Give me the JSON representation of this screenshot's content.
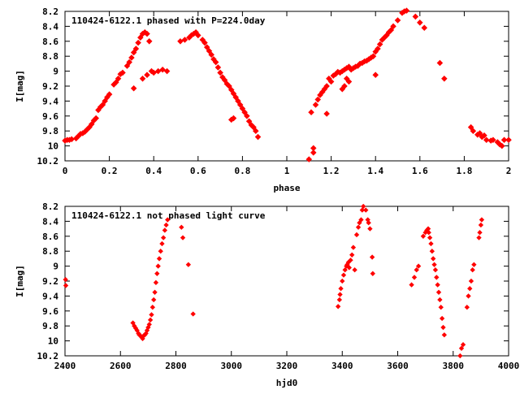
{
  "colors": {
    "points": "#ff0000",
    "axis": "#000000",
    "background": "#ffffff"
  },
  "chart_data": [
    {
      "type": "scatter",
      "title": "110424-6122.1 phased with P=224.0day",
      "xlabel": "phase",
      "ylabel": "I[mag]",
      "xlim": [
        0,
        2
      ],
      "ylim": [
        10.2,
        8.2
      ],
      "y_inverted": true,
      "grid": false,
      "legend": "none",
      "x_ticks": [
        "0",
        "0.2",
        "0.4",
        "0.6",
        "0.8",
        "1",
        "1.2",
        "1.4",
        "1.6",
        "1.8",
        "2"
      ],
      "y_ticks": [
        "8.2",
        "8.4",
        "8.6",
        "8.8",
        "9",
        "9.2",
        "9.4",
        "9.6",
        "9.8",
        "10",
        "10.2"
      ],
      "points": [
        [
          0.0,
          9.93
        ],
        [
          0.01,
          9.92
        ],
        [
          0.02,
          9.92
        ],
        [
          0.03,
          9.91
        ],
        [
          0.05,
          9.9
        ],
        [
          0.06,
          9.87
        ],
        [
          0.07,
          9.84
        ],
        [
          0.08,
          9.83
        ],
        [
          0.09,
          9.81
        ],
        [
          0.1,
          9.78
        ],
        [
          0.11,
          9.75
        ],
        [
          0.12,
          9.71
        ],
        [
          0.13,
          9.66
        ],
        [
          0.14,
          9.63
        ],
        [
          0.15,
          9.52
        ],
        [
          0.16,
          9.48
        ],
        [
          0.17,
          9.45
        ],
        [
          0.18,
          9.4
        ],
        [
          0.19,
          9.35
        ],
        [
          0.2,
          9.31
        ],
        [
          0.22,
          9.18
        ],
        [
          0.23,
          9.15
        ],
        [
          0.24,
          9.1
        ],
        [
          0.25,
          9.04
        ],
        [
          0.26,
          9.02
        ],
        [
          0.28,
          8.93
        ],
        [
          0.29,
          8.88
        ],
        [
          0.3,
          8.82
        ],
        [
          0.31,
          8.75
        ],
        [
          0.32,
          8.7
        ],
        [
          0.33,
          8.62
        ],
        [
          0.34,
          8.55
        ],
        [
          0.35,
          8.5
        ],
        [
          0.36,
          8.48
        ],
        [
          0.37,
          8.5
        ],
        [
          0.38,
          8.6
        ],
        [
          0.39,
          9.0
        ],
        [
          0.4,
          9.02
        ],
        [
          0.42,
          9.0
        ],
        [
          0.44,
          8.98
        ],
        [
          0.46,
          9.0
        ],
        [
          0.37,
          9.05
        ],
        [
          0.35,
          9.1
        ],
        [
          0.31,
          9.23
        ],
        [
          0.52,
          8.6
        ],
        [
          0.54,
          8.58
        ],
        [
          0.56,
          8.55
        ],
        [
          0.57,
          8.52
        ],
        [
          0.58,
          8.5
        ],
        [
          0.59,
          8.48
        ],
        [
          0.6,
          8.52
        ],
        [
          0.62,
          8.58
        ],
        [
          0.63,
          8.62
        ],
        [
          0.64,
          8.68
        ],
        [
          0.65,
          8.73
        ],
        [
          0.66,
          8.78
        ],
        [
          0.67,
          8.84
        ],
        [
          0.68,
          8.88
        ],
        [
          0.69,
          8.95
        ],
        [
          0.7,
          9.02
        ],
        [
          0.71,
          9.08
        ],
        [
          0.72,
          9.12
        ],
        [
          0.73,
          9.17
        ],
        [
          0.74,
          9.2
        ],
        [
          0.75,
          9.25
        ],
        [
          0.76,
          9.3
        ],
        [
          0.77,
          9.35
        ],
        [
          0.78,
          9.4
        ],
        [
          0.79,
          9.45
        ],
        [
          0.8,
          9.5
        ],
        [
          0.81,
          9.55
        ],
        [
          0.82,
          9.6
        ],
        [
          0.83,
          9.67
        ],
        [
          0.84,
          9.72
        ],
        [
          0.85,
          9.75
        ],
        [
          0.86,
          9.8
        ],
        [
          0.87,
          9.88
        ],
        [
          0.76,
          9.63
        ],
        [
          0.75,
          9.65
        ],
        [
          1.1,
          10.18
        ],
        [
          1.12,
          10.09
        ],
        [
          1.12,
          10.03
        ],
        [
          1.11,
          9.55
        ],
        [
          1.13,
          9.45
        ],
        [
          1.14,
          9.38
        ],
        [
          1.15,
          9.32
        ],
        [
          1.16,
          9.28
        ],
        [
          1.17,
          9.24
        ],
        [
          1.18,
          9.2
        ],
        [
          1.18,
          9.57
        ],
        [
          1.19,
          9.1
        ],
        [
          1.2,
          9.14
        ],
        [
          1.21,
          9.06
        ],
        [
          1.22,
          9.04
        ],
        [
          1.23,
          9.01
        ],
        [
          1.24,
          9.02
        ],
        [
          1.25,
          9.0
        ],
        [
          1.26,
          8.98
        ],
        [
          1.27,
          8.96
        ],
        [
          1.28,
          8.94
        ],
        [
          1.29,
          8.98
        ],
        [
          1.3,
          8.96
        ],
        [
          1.31,
          8.94
        ],
        [
          1.32,
          8.93
        ],
        [
          1.33,
          8.9
        ],
        [
          1.34,
          8.89
        ],
        [
          1.35,
          8.87
        ],
        [
          1.36,
          8.86
        ],
        [
          1.37,
          8.84
        ],
        [
          1.38,
          8.82
        ],
        [
          1.39,
          8.8
        ],
        [
          1.4,
          8.74
        ],
        [
          1.41,
          8.7
        ],
        [
          1.42,
          8.64
        ],
        [
          1.43,
          8.58
        ],
        [
          1.44,
          8.55
        ],
        [
          1.45,
          8.52
        ],
        [
          1.46,
          8.48
        ],
        [
          1.47,
          8.45
        ],
        [
          1.48,
          8.4
        ],
        [
          1.5,
          8.32
        ],
        [
          1.52,
          8.22
        ],
        [
          1.53,
          8.2
        ],
        [
          1.54,
          8.19
        ],
        [
          1.58,
          8.27
        ],
        [
          1.6,
          8.35
        ],
        [
          1.62,
          8.42
        ],
        [
          1.4,
          9.05
        ],
        [
          1.28,
          9.14
        ],
        [
          1.26,
          9.2
        ],
        [
          1.25,
          9.24
        ],
        [
          1.27,
          9.1
        ],
        [
          1.69,
          8.89
        ],
        [
          1.71,
          9.1
        ],
        [
          1.83,
          9.75
        ],
        [
          1.84,
          9.8
        ],
        [
          1.86,
          9.85
        ],
        [
          1.87,
          9.83
        ],
        [
          1.88,
          9.88
        ],
        [
          1.89,
          9.86
        ],
        [
          1.9,
          9.92
        ],
        [
          1.92,
          9.93
        ],
        [
          1.93,
          9.92
        ],
        [
          1.95,
          9.95
        ],
        [
          1.96,
          9.98
        ],
        [
          1.97,
          10.0
        ],
        [
          1.98,
          9.92
        ],
        [
          2.0,
          9.92
        ]
      ]
    },
    {
      "type": "scatter",
      "title": "110424-6122.1 not phased light curve",
      "xlabel": "hjd0",
      "ylabel": "I[mag]",
      "xlim": [
        2400,
        4000
      ],
      "ylim": [
        10.2,
        8.2
      ],
      "y_inverted": true,
      "grid": false,
      "legend": "none",
      "x_ticks": [
        "2400",
        "2600",
        "2800",
        "3000",
        "3200",
        "3400",
        "3600",
        "3800",
        "4000"
      ],
      "y_ticks": [
        "8.2",
        "8.4",
        "8.6",
        "8.8",
        "9",
        "9.2",
        "9.4",
        "9.6",
        "9.8",
        "10",
        "10.2"
      ],
      "points": [
        [
          2402,
          9.18
        ],
        [
          2403,
          9.26
        ],
        [
          2645,
          9.76
        ],
        [
          2650,
          9.8
        ],
        [
          2655,
          9.83
        ],
        [
          2660,
          9.86
        ],
        [
          2665,
          9.9
        ],
        [
          2668,
          9.92
        ],
        [
          2672,
          9.93
        ],
        [
          2676,
          9.95
        ],
        [
          2680,
          9.97
        ],
        [
          2684,
          9.93
        ],
        [
          2688,
          9.92
        ],
        [
          2692,
          9.9
        ],
        [
          2696,
          9.86
        ],
        [
          2700,
          9.82
        ],
        [
          2704,
          9.78
        ],
        [
          2708,
          9.72
        ],
        [
          2712,
          9.65
        ],
        [
          2716,
          9.55
        ],
        [
          2720,
          9.45
        ],
        [
          2724,
          9.35
        ],
        [
          2728,
          9.22
        ],
        [
          2732,
          9.1
        ],
        [
          2736,
          9.0
        ],
        [
          2740,
          8.9
        ],
        [
          2745,
          8.8
        ],
        [
          2750,
          8.7
        ],
        [
          2755,
          8.62
        ],
        [
          2760,
          8.52
        ],
        [
          2765,
          8.45
        ],
        [
          2770,
          8.38
        ],
        [
          2820,
          8.48
        ],
        [
          2825,
          8.62
        ],
        [
          2845,
          8.98
        ],
        [
          2862,
          9.64
        ],
        [
          3385,
          9.54
        ],
        [
          3390,
          9.45
        ],
        [
          3392,
          9.38
        ],
        [
          3395,
          9.3
        ],
        [
          3400,
          9.2
        ],
        [
          3405,
          9.12
        ],
        [
          3410,
          9.05
        ],
        [
          3415,
          9.0
        ],
        [
          3418,
          8.98
        ],
        [
          3422,
          8.95
        ],
        [
          3425,
          9.02
        ],
        [
          3430,
          8.92
        ],
        [
          3435,
          8.85
        ],
        [
          3440,
          8.75
        ],
        [
          3445,
          9.05
        ],
        [
          3452,
          8.58
        ],
        [
          3458,
          8.48
        ],
        [
          3462,
          8.42
        ],
        [
          3468,
          8.38
        ],
        [
          3472,
          8.25
        ],
        [
          3476,
          8.2
        ],
        [
          3485,
          8.25
        ],
        [
          3492,
          8.38
        ],
        [
          3495,
          8.42
        ],
        [
          3500,
          8.5
        ],
        [
          3508,
          8.88
        ],
        [
          3510,
          9.1
        ],
        [
          3650,
          9.25
        ],
        [
          3660,
          9.15
        ],
        [
          3668,
          9.05
        ],
        [
          3675,
          9.0
        ],
        [
          3692,
          8.6
        ],
        [
          3700,
          8.55
        ],
        [
          3705,
          8.52
        ],
        [
          3710,
          8.5
        ],
        [
          3712,
          8.55
        ],
        [
          3716,
          8.62
        ],
        [
          3720,
          8.7
        ],
        [
          3724,
          8.8
        ],
        [
          3728,
          8.9
        ],
        [
          3732,
          8.98
        ],
        [
          3736,
          9.05
        ],
        [
          3740,
          9.15
        ],
        [
          3744,
          9.25
        ],
        [
          3748,
          9.35
        ],
        [
          3752,
          9.45
        ],
        [
          3756,
          9.55
        ],
        [
          3760,
          9.7
        ],
        [
          3764,
          9.82
        ],
        [
          3768,
          9.92
        ],
        [
          3825,
          10.2
        ],
        [
          3830,
          10.1
        ],
        [
          3836,
          10.05
        ],
        [
          3850,
          9.55
        ],
        [
          3855,
          9.4
        ],
        [
          3860,
          9.3
        ],
        [
          3865,
          9.2
        ],
        [
          3870,
          9.05
        ],
        [
          3875,
          8.98
        ],
        [
          3893,
          8.62
        ],
        [
          3896,
          8.55
        ],
        [
          3900,
          8.45
        ],
        [
          3903,
          8.38
        ]
      ]
    }
  ]
}
